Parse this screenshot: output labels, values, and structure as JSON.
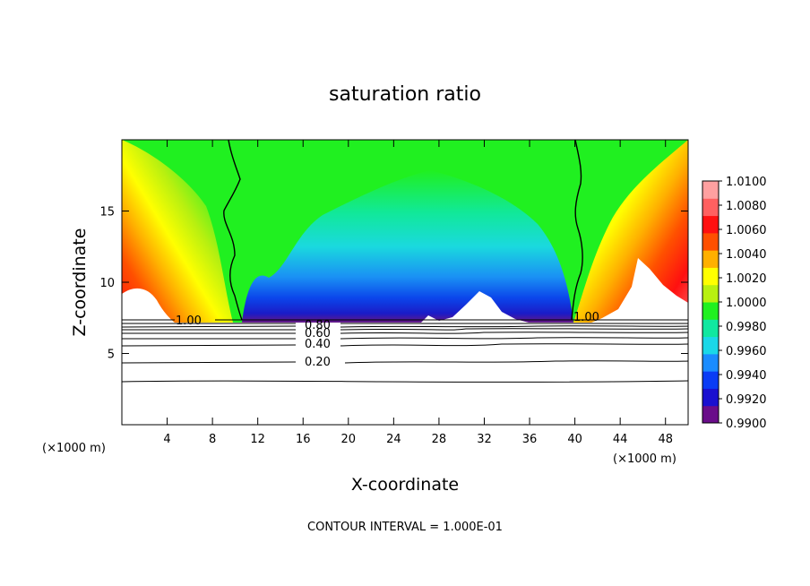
{
  "chart_data": {
    "type": "heatmap",
    "title": "saturation ratio",
    "xlabel": "X-coordinate",
    "ylabel": "Z-coordinate",
    "x_unit_left": "(×1000 m)",
    "x_unit_right": "(×1000 m)",
    "xlim": [
      0,
      50
    ],
    "ylim": [
      0,
      20
    ],
    "xticks": [
      "4",
      "8",
      "12",
      "16",
      "20",
      "24",
      "28",
      "32",
      "36",
      "40",
      "44",
      "48"
    ],
    "yticks": [
      "5",
      "10",
      "15"
    ],
    "colorbar": {
      "labels": [
        "1.0100",
        "1.0080",
        "1.0060",
        "1.0040",
        "1.0020",
        "1.0000",
        "0.9980",
        "0.9960",
        "0.9940",
        "0.9920",
        "0.9900"
      ],
      "min": 0.99,
      "max": 1.01,
      "colors": [
        "#6a0d8a",
        "#1a10d0",
        "#0a3cf5",
        "#1a8cff",
        "#1ad8e8",
        "#10e8a0",
        "#20f020",
        "#b8f010",
        "#ffff00",
        "#ffb000",
        "#ff5000",
        "#ff1010",
        "#ff6060",
        "#ffa0a0"
      ]
    },
    "contour_labels": [
      "1.00",
      "0.80",
      "0.60",
      "0.40",
      "0.20",
      "1.00"
    ],
    "footer": "CONTOUR INTERVAL = 1.000E-01"
  }
}
